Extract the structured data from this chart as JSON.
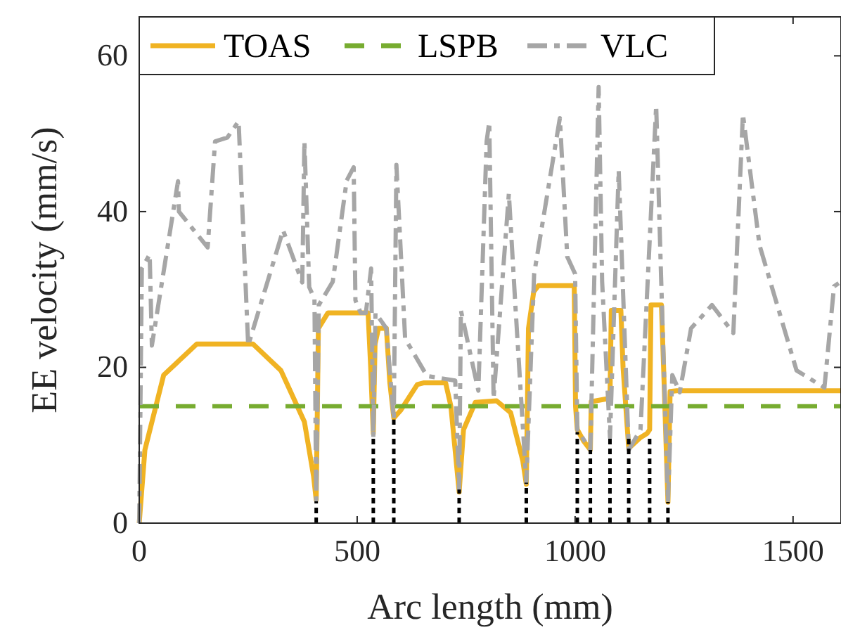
{
  "chart_data": {
    "type": "line",
    "xlabel": "Arc length (mm)",
    "ylabel": "EE velocity (mm/s)",
    "xlim": [
      0,
      1610
    ],
    "xticks": [
      0,
      500,
      1000,
      1500
    ],
    "ylim": [
      0,
      65
    ],
    "yticks": [
      0,
      20,
      40,
      60
    ],
    "legend": "top left",
    "grid": false,
    "marker": "none",
    "series": [
      {
        "name": "TOAS",
        "color": "#f0b323",
        "line_style": "solid",
        "x": [
          0,
          13,
          56,
          132,
          261,
          325,
          379,
          400,
          406,
          411,
          433,
          525,
          531,
          537,
          541,
          549,
          567,
          575,
          584,
          600,
          638,
          652,
          703,
          715,
          734,
          744,
          771,
          820,
          852,
          880,
          888,
          893,
          905,
          916,
          998,
          1001,
          1005,
          1020,
          1035,
          1037,
          1077,
          1080,
          1083,
          1105,
          1110,
          1123,
          1150,
          1165,
          1171,
          1174,
          1198,
          1203,
          1213,
          1218,
          1233,
          1610
        ],
        "values": [
          0,
          9.4,
          19,
          23,
          23,
          19.6,
          13,
          6,
          3,
          25,
          27,
          27,
          20,
          11.5,
          23,
          25,
          25,
          18,
          13.5,
          14.5,
          17.8,
          18,
          18,
          15,
          4,
          12,
          15.5,
          15.7,
          14.2,
          8,
          5,
          25,
          29.7,
          30.5,
          30.5,
          15,
          12,
          10.5,
          9.4,
          15.6,
          16,
          16,
          27.3,
          27.3,
          20,
          9.6,
          11,
          11.5,
          12,
          28,
          28,
          20,
          2.7,
          16.9,
          17,
          17
        ]
      },
      {
        "name": "LSPB",
        "color": "#77ac30",
        "line_style": "dashed",
        "x": [
          0,
          1610
        ],
        "values": [
          15,
          15
        ]
      },
      {
        "name": "VLC",
        "color": "#a6a6a6",
        "line_style": "dashed",
        "x": [
          0,
          6,
          24,
          29,
          89,
          91,
          157,
          174,
          202,
          228,
          250,
          330,
          374,
          379,
          390,
          402,
          406,
          412,
          444,
          476,
          492,
          496,
          508,
          520,
          532,
          537,
          542,
          567,
          584,
          590,
          610,
          660,
          725,
          734,
          738,
          778,
          797,
          803,
          813,
          848,
          863,
          888,
          906,
          965,
          982,
          1000,
          1005,
          1035,
          1054,
          1062,
          1080,
          1100,
          1123,
          1150,
          1186,
          1196,
          1213,
          1223,
          1240,
          1266,
          1314,
          1363,
          1385,
          1423,
          1508,
          1572,
          1594,
          1610
        ],
        "values": [
          0,
          32.7,
          34.5,
          22.8,
          43.9,
          40,
          35.4,
          49,
          49.5,
          51.6,
          22.8,
          37.6,
          30.9,
          49,
          30.3,
          28.8,
          3,
          28,
          31,
          44,
          45.7,
          28.6,
          27,
          27,
          32.7,
          11,
          27,
          25,
          13.3,
          46,
          23.7,
          18.9,
          18.3,
          4.3,
          27.3,
          17,
          49,
          51.5,
          16,
          42.3,
          27.9,
          5.2,
          32,
          52,
          34.2,
          32,
          12,
          9.4,
          56,
          31,
          11,
          45.3,
          9.4,
          12,
          53.6,
          33.9,
          2.7,
          19,
          16.8,
          25,
          28,
          24.4,
          52.5,
          35.7,
          19.6,
          17.4,
          30.4,
          31
        ]
      },
      {
        "color": "#000000",
        "line_style": "dotted",
        "x": [
          406,
          406
        ],
        "values": [
          0,
          2.8
        ]
      },
      {
        "color": "#000000",
        "line_style": "dotted",
        "x": [
          537,
          537
        ],
        "values": [
          0,
          11.2
        ]
      },
      {
        "color": "#000000",
        "line_style": "dotted",
        "x": [
          584,
          584
        ],
        "values": [
          0,
          13.3
        ]
      },
      {
        "color": "#000000",
        "line_style": "dotted",
        "x": [
          734,
          734
        ],
        "values": [
          0,
          4.3
        ]
      },
      {
        "color": "#000000",
        "line_style": "dotted",
        "x": [
          888,
          888
        ],
        "values": [
          0,
          5.2
        ]
      },
      {
        "color": "#000000",
        "line_style": "dotted",
        "x": [
          1005,
          1005
        ],
        "values": [
          0,
          11.7
        ]
      },
      {
        "color": "#000000",
        "line_style": "dotted",
        "x": [
          1035,
          1035
        ],
        "values": [
          0,
          9.4
        ]
      },
      {
        "color": "#000000",
        "line_style": "dotted",
        "x": [
          1080,
          1080
        ],
        "values": [
          0,
          11.2
        ]
      },
      {
        "color": "#000000",
        "line_style": "dotted",
        "x": [
          1123,
          1123
        ],
        "values": [
          0,
          11.2
        ]
      },
      {
        "color": "#000000",
        "line_style": "dotted",
        "x": [
          1171,
          1171
        ],
        "values": [
          0,
          11.2
        ]
      },
      {
        "color": "#000000",
        "line_style": "dotted",
        "x": [
          1213,
          1213
        ],
        "values": [
          0,
          2.7
        ]
      }
    ]
  }
}
